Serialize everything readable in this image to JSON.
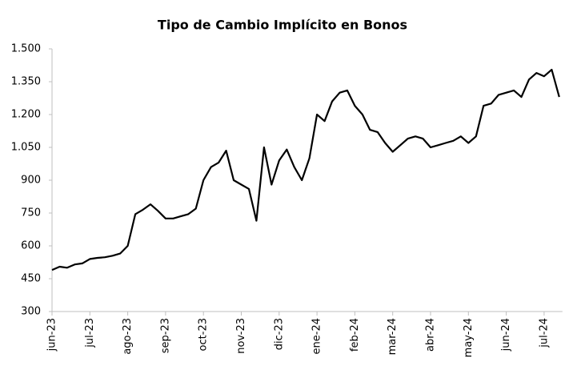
{
  "chart_data": {
    "type": "line",
    "title": "Tipo de Cambio Implícito en Bonos",
    "categories": [
      "jun-23",
      null,
      null,
      null,
      null,
      "jul-23",
      null,
      null,
      null,
      null,
      "ago-23",
      null,
      null,
      null,
      null,
      "sep-23",
      null,
      null,
      null,
      null,
      "oct-23",
      null,
      null,
      null,
      null,
      "nov-23",
      null,
      null,
      null,
      null,
      "dic-23",
      null,
      null,
      null,
      null,
      "ene-24",
      null,
      null,
      null,
      null,
      "feb-24",
      null,
      null,
      null,
      null,
      "mar-24",
      null,
      null,
      null,
      null,
      "abr-24",
      null,
      null,
      null,
      null,
      "may-24",
      null,
      null,
      null,
      null,
      "jun-24",
      null,
      null,
      null,
      null,
      "jul-24",
      null,
      null
    ],
    "values": [
      490,
      505,
      500,
      515,
      520,
      540,
      545,
      548,
      555,
      565,
      600,
      745,
      765,
      790,
      760,
      725,
      725,
      735,
      745,
      770,
      900,
      960,
      980,
      1035,
      900,
      880,
      860,
      715,
      1050,
      880,
      990,
      1040,
      960,
      900,
      1000,
      1200,
      1170,
      1260,
      1300,
      1310,
      1240,
      1200,
      1130,
      1120,
      1070,
      1030,
      1060,
      1090,
      1100,
      1090,
      1050,
      1060,
      1070,
      1080,
      1100,
      1070,
      1100,
      1240,
      1250,
      1290,
      1300,
      1310,
      1280,
      1360,
      1390,
      1375,
      1405,
      1280
    ],
    "color": "#000000",
    "ylim": [
      300,
      1500
    ],
    "yticks": [
      300,
      450,
      600,
      750,
      900,
      {
        "value": 1050,
        "label": "1.050"
      },
      {
        "value": 1200,
        "label": "1.200"
      },
      {
        "value": 1350,
        "label": "1.350"
      },
      {
        "value": 1500,
        "label": "1.500"
      }
    ],
    "grid": false
  }
}
